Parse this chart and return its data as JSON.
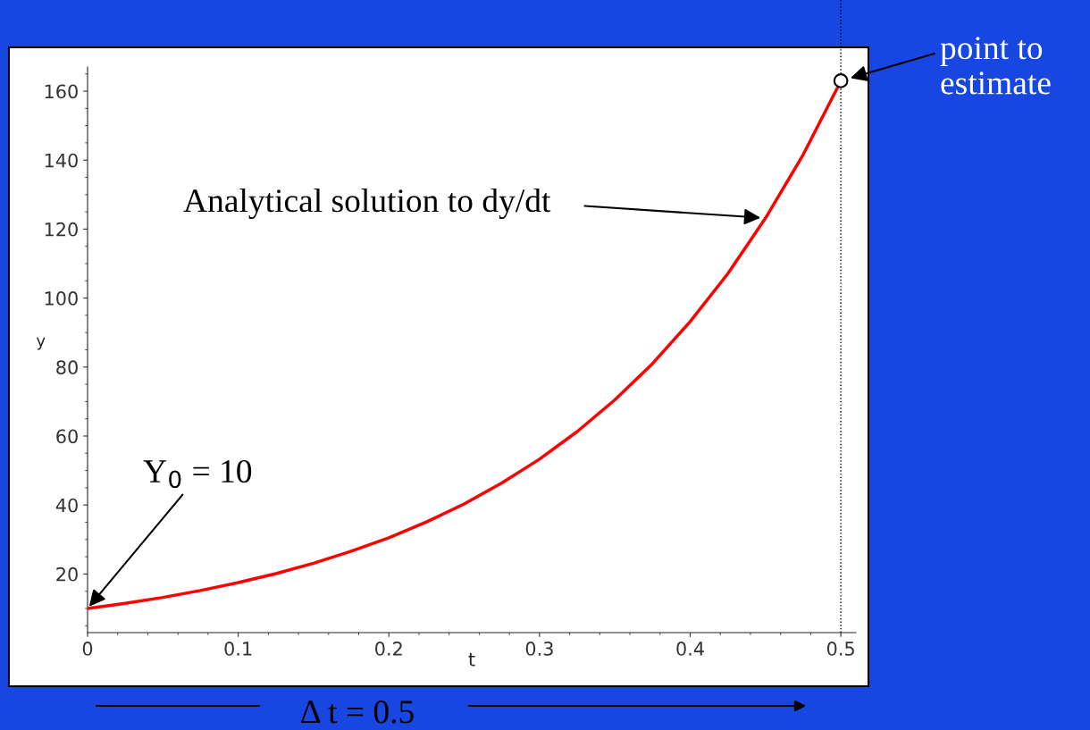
{
  "chart_data": {
    "type": "line",
    "xlabel": "t",
    "ylabel": "y",
    "x": [
      0,
      0.025,
      0.05,
      0.075,
      0.1,
      0.125,
      0.15,
      0.175,
      0.2,
      0.225,
      0.25,
      0.275,
      0.3,
      0.325,
      0.35,
      0.375,
      0.4,
      0.425,
      0.45,
      0.475,
      0.5
    ],
    "series": [
      {
        "color": "#ff0000",
        "values": [
          10,
          11.5,
          13.2,
          15.2,
          17.5,
          20.1,
          23.1,
          26.6,
          30.5,
          35.1,
          40.3,
          46.4,
          53.3,
          61.3,
          70.5,
          81.0,
          93.2,
          107.1,
          123.2,
          141.6,
          162.9
        ]
      },
      {
        "type": "scatter",
        "color": "#000000",
        "marker": "circle",
        "x": [
          0.5
        ],
        "values": [
          163
        ]
      }
    ],
    "xlim": [
      0,
      0.51
    ],
    "ylim": [
      3,
      167
    ],
    "xticks": [
      0,
      0.1,
      0.2,
      0.3,
      0.4,
      0.5
    ],
    "yticks": [
      20,
      40,
      60,
      80,
      100,
      120,
      140,
      160
    ],
    "ref_lines": [
      {
        "axis": "x",
        "value": 0.5,
        "color": "#000000",
        "line_style": "dotted"
      }
    ],
    "annotations": [
      {
        "text": "Analytical solution to dy/dt",
        "x": 0.45,
        "y": 123.2
      },
      {
        "text": "Y$_{0}$ = 10",
        "x": 0,
        "y": 10
      },
      {
        "text": "point to estimate",
        "x": 0.5,
        "y": 163
      },
      "Δ t = 0.5"
    ],
    "grid": false,
    "legend": false
  }
}
